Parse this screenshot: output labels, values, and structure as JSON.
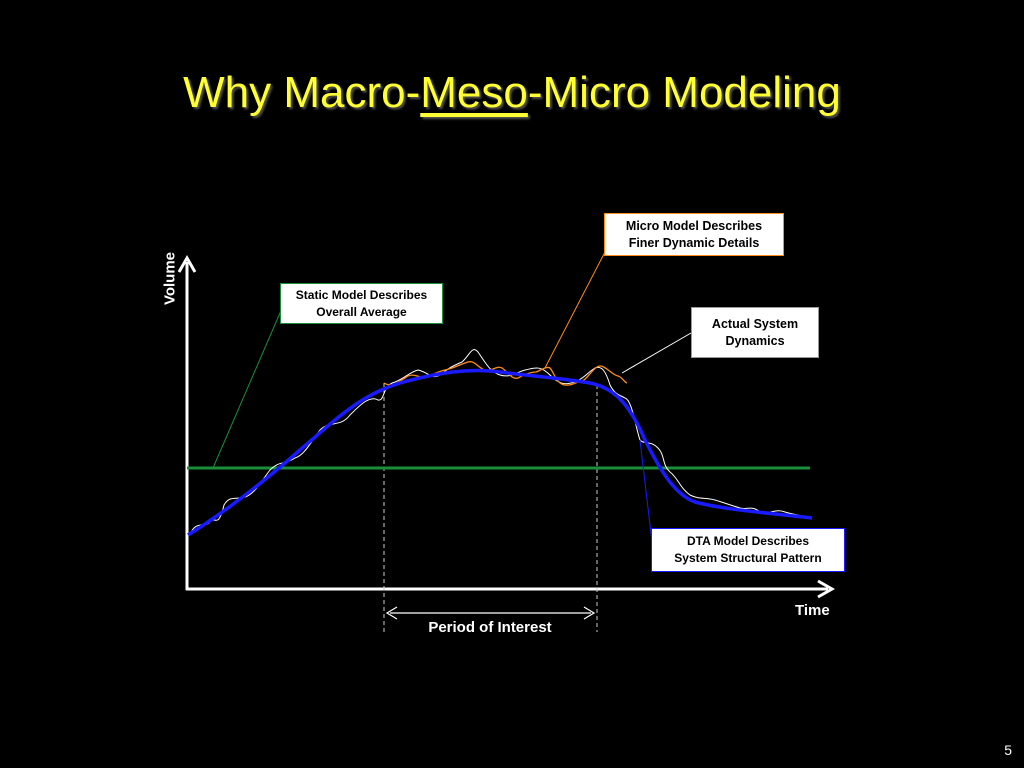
{
  "slide": {
    "title_part1": "Why Macro-",
    "title_part2": "Meso",
    "title_part3": "-Micro Modeling",
    "page_number": "5"
  },
  "axes": {
    "y_label": "Volume",
    "x_label": "Time",
    "period_label": "Period of Interest"
  },
  "callouts": {
    "micro": "Micro Model Describes\nFiner Dynamic Details",
    "static": "Static Model Describes\nOverall Average",
    "actual": "Actual System\nDynamics",
    "dta": "DTA Model Describes\nSystem Structural Pattern"
  },
  "colors": {
    "title": "#ffff33",
    "static_line": "#1a8f3a",
    "dta_curve": "#1a1aff",
    "micro_curve": "#ff8c1a",
    "actual_curve": "#ffffff"
  }
}
